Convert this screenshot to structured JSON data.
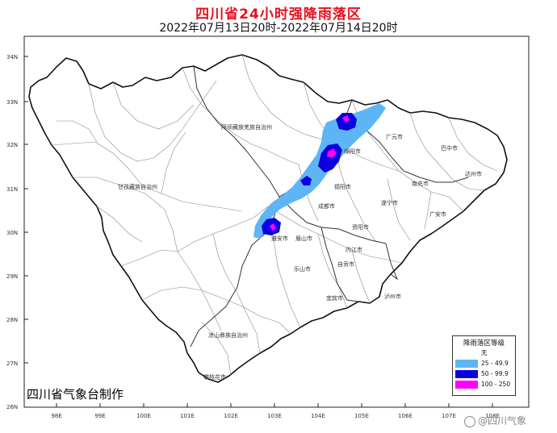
{
  "header": {
    "title": "四川省24小时强降雨落区",
    "subtitle": "2022年07月13日20时-2022年07月14日20时"
  },
  "axes": {
    "lat_labels": [
      "34N",
      "33N",
      "32N",
      "31N",
      "30N",
      "29N",
      "28N",
      "27N",
      "26N"
    ],
    "lon_labels": [
      "98E",
      "99E",
      "100E",
      "101E",
      "102E",
      "103E",
      "104E",
      "105E",
      "106E",
      "107E",
      "108E"
    ]
  },
  "regions": [
    "阿坝藏族羌族自治州",
    "甘孜藏族自治州",
    "凉山彝族自治州",
    "攀枝花市",
    "雅安市",
    "眉山市",
    "乐山市",
    "成都市",
    "德阳市",
    "绵阳市",
    "广元市",
    "巴中市",
    "达州市",
    "南充市",
    "遂宁市",
    "资阳市",
    "内江市",
    "自贡市",
    "宜宾市",
    "泸州市",
    "广安市"
  ],
  "legend": {
    "title": "降雨落区等级",
    "items": [
      {
        "label": "无",
        "color": "#ffffff"
      },
      {
        "label": "25 - 49.9",
        "color": "#5eb5f5"
      },
      {
        "label": "50 - 99.9",
        "color": "#0b00e0"
      },
      {
        "label": "100 - 250",
        "color": "#ff00ff"
      }
    ]
  },
  "footer": {
    "maker": "四川省气象台制作",
    "watermark": "@四川气象"
  },
  "colors": {
    "title": "#e8101e",
    "rain_25": "#5eb5f5",
    "rain_50": "#0b00e0",
    "rain_100": "#ff00ff"
  }
}
